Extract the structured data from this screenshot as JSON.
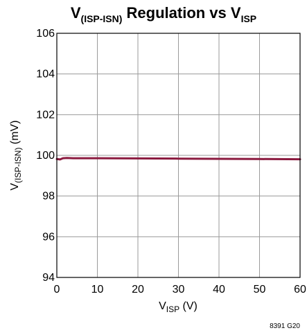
{
  "chart_data": {
    "type": "line",
    "title": {
      "prefix": "V",
      "prefix_sub": "(ISP-ISN)",
      "middle": " Regulation vs V",
      "suffix_sub": "ISP"
    },
    "xlabel": {
      "main": "V",
      "sub": "ISP",
      "unit": " (V)"
    },
    "ylabel": {
      "main": "V",
      "sub": "(ISP-ISN)",
      "unit": " (mV)"
    },
    "xlim": [
      0,
      60
    ],
    "ylim": [
      94,
      106
    ],
    "xticks": [
      0,
      10,
      20,
      30,
      40,
      50,
      60
    ],
    "yticks": [
      94,
      96,
      98,
      100,
      102,
      104,
      106
    ],
    "grid": true,
    "series": [
      {
        "color": "#8b1a3f",
        "x": [
          0,
          0.8,
          1.5,
          2.5,
          4,
          10,
          20,
          30,
          40,
          50,
          60
        ],
        "y": [
          99.82,
          99.8,
          99.86,
          99.87,
          99.86,
          99.86,
          99.85,
          99.84,
          99.83,
          99.82,
          99.81
        ]
      }
    ],
    "figure_id": "8391 G20"
  }
}
